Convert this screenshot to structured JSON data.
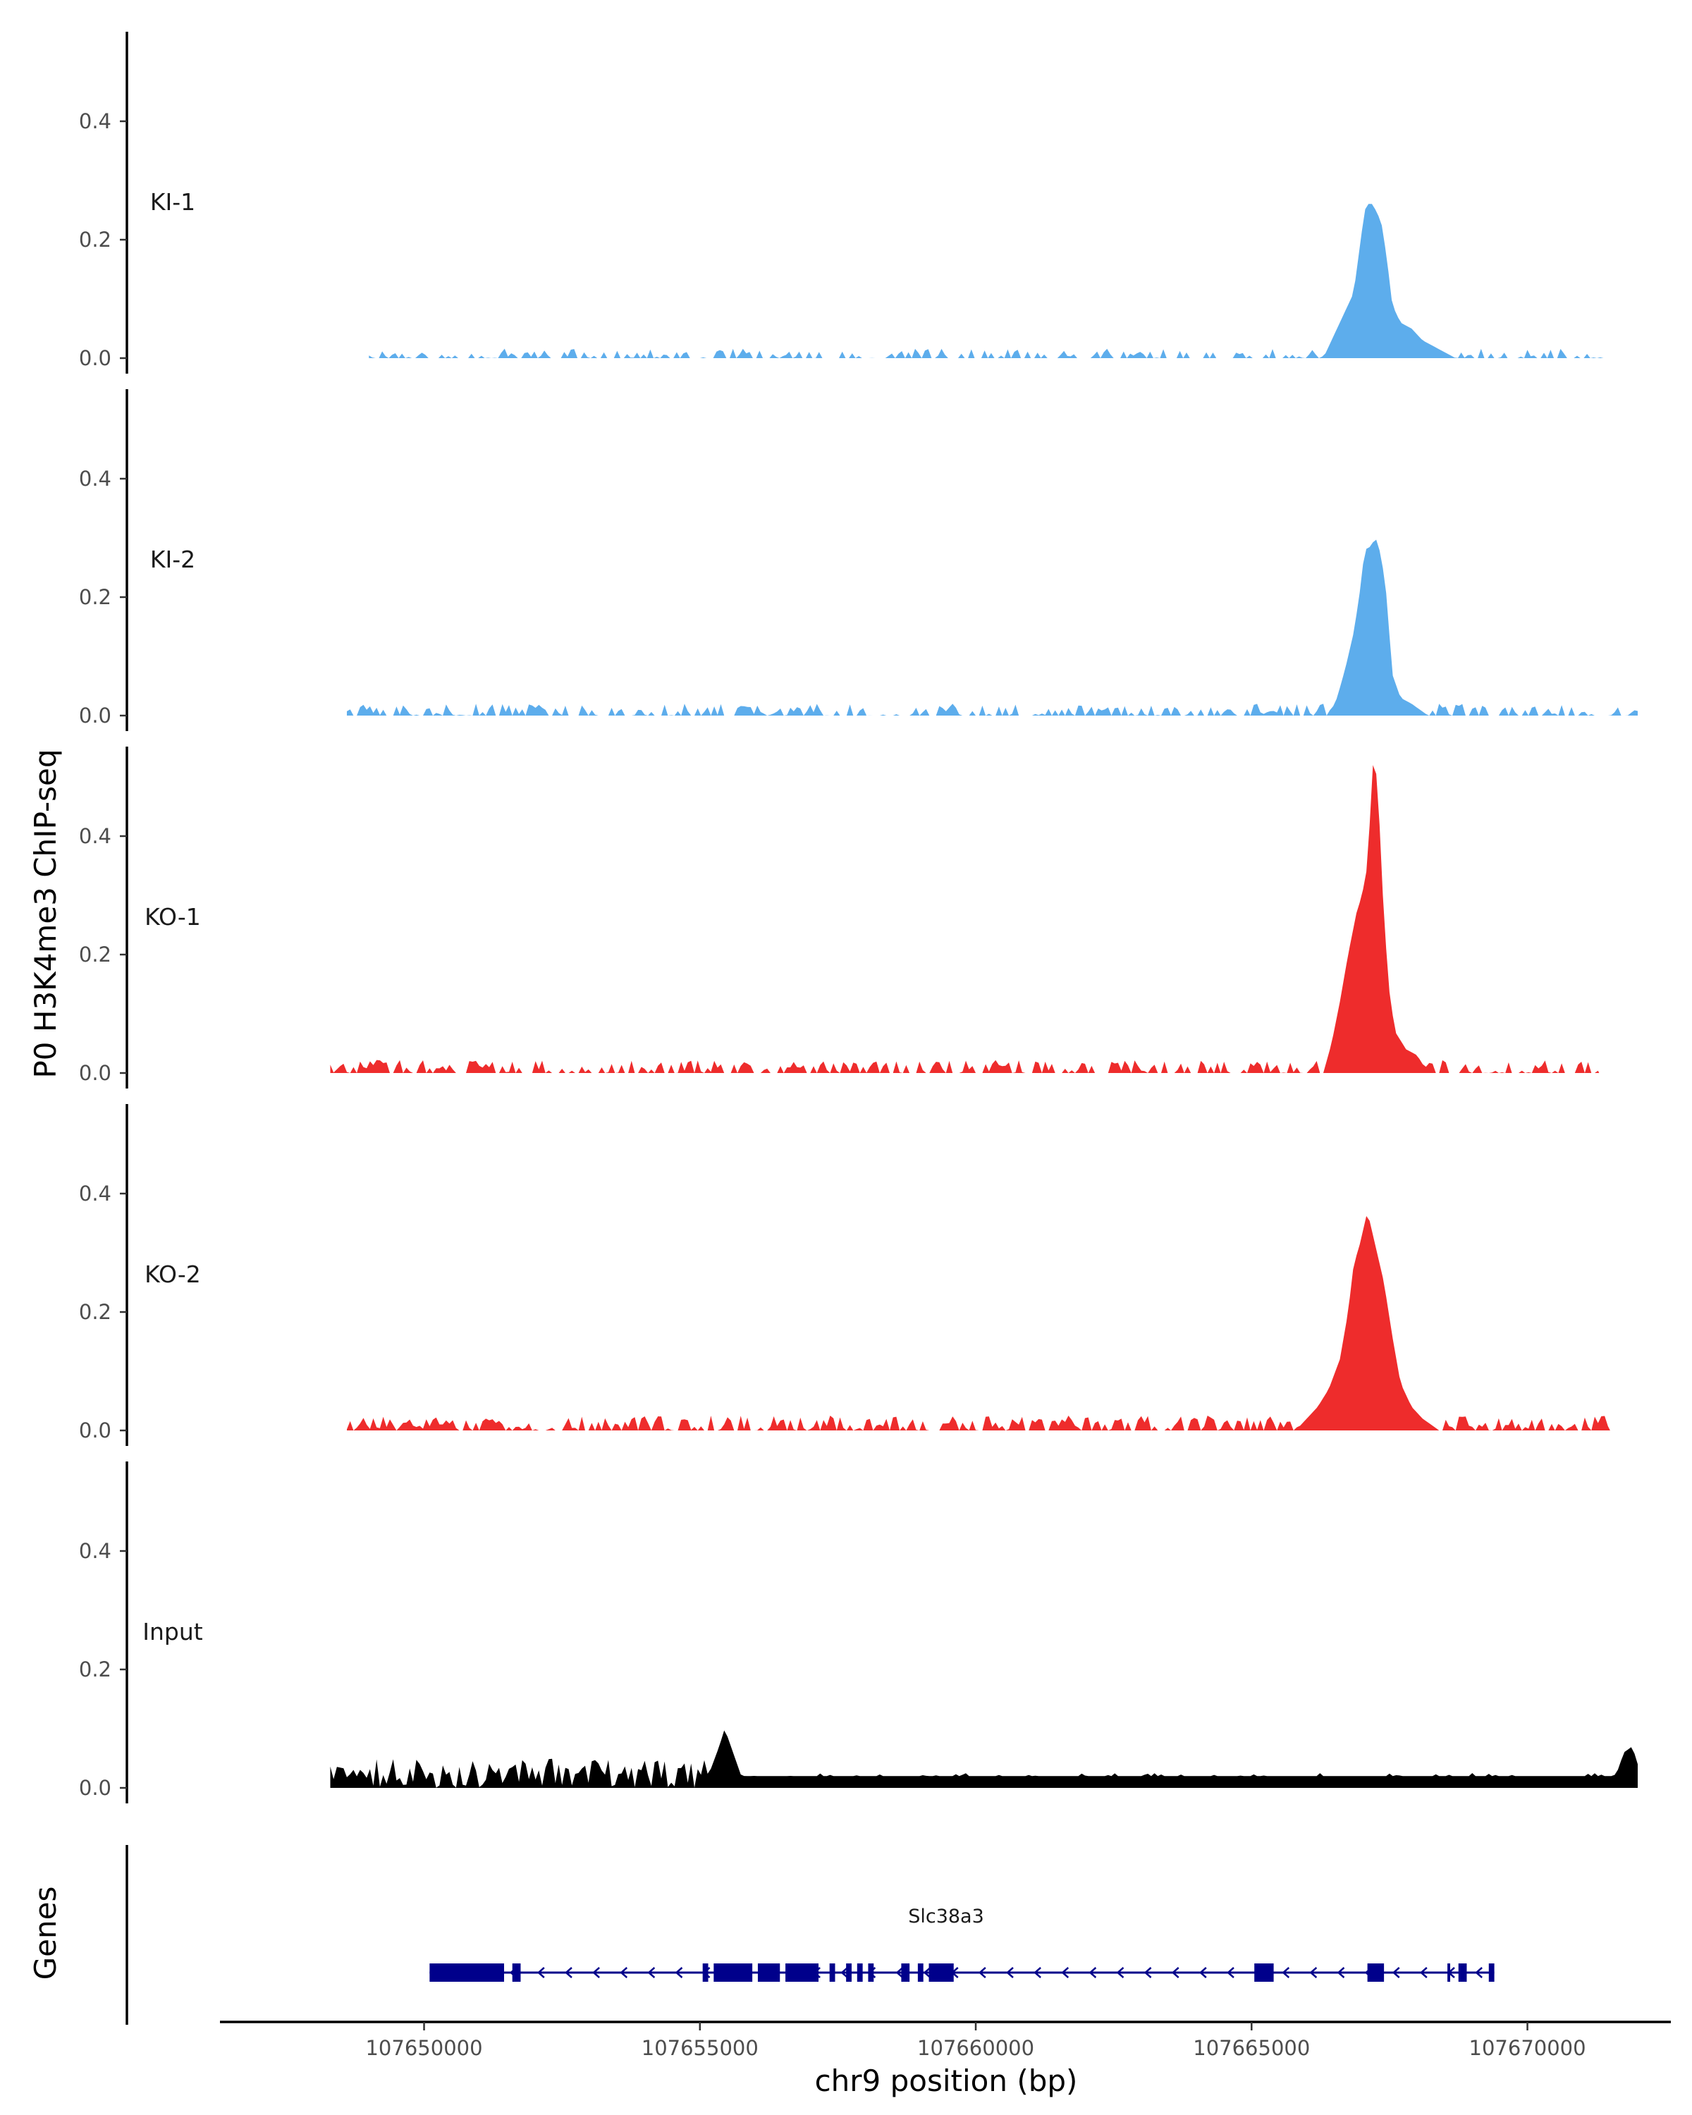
{
  "chart_data": {
    "type": "area",
    "title": "",
    "ylabel": "P0 H3K4me3 ChIP-seq",
    "genes_label": "Genes",
    "xlabel": "chr9 position (bp)",
    "x_range": [
      107646300,
      107672600
    ],
    "x_ticks": [
      107650000,
      107655000,
      107660000,
      107665000,
      107670000
    ],
    "x_tick_labels": [
      "107650000",
      "107655000",
      "107660000",
      "107665000",
      "107670000"
    ],
    "y_range": [
      0,
      0.55
    ],
    "y_ticks": [
      0.0,
      0.2,
      0.4
    ],
    "y_tick_labels": [
      "0.0",
      "0.2",
      "0.4"
    ],
    "colors": {
      "KI": "#5DADEC",
      "KO": "#EE2C2C",
      "Input": "#000000",
      "gene": "#00008B"
    },
    "tracks": [
      {
        "name": "KI-1",
        "color": "#5DADEC",
        "seed": 11,
        "start": 107649000,
        "end": 107671500,
        "noise_max": 0.016,
        "noise_density": 0.5,
        "peak": [
          [
            107666300,
            0.0
          ],
          [
            107666500,
            0.04
          ],
          [
            107666700,
            0.08
          ],
          [
            107666850,
            0.11
          ],
          [
            107666950,
            0.18
          ],
          [
            107667050,
            0.25
          ],
          [
            107667150,
            0.265
          ],
          [
            107667250,
            0.25
          ],
          [
            107667350,
            0.23
          ],
          [
            107667450,
            0.17
          ],
          [
            107667550,
            0.09
          ],
          [
            107667700,
            0.06
          ],
          [
            107667900,
            0.05
          ],
          [
            107668100,
            0.03
          ],
          [
            107668400,
            0.015
          ],
          [
            107668700,
            0.0
          ]
        ]
      },
      {
        "name": "KI-2",
        "color": "#5DADEC",
        "seed": 23,
        "start": 107648600,
        "end": 107672000,
        "noise_max": 0.02,
        "noise_density": 0.6,
        "peak": [
          [
            107666400,
            0.0
          ],
          [
            107666550,
            0.03
          ],
          [
            107666700,
            0.08
          ],
          [
            107666850,
            0.14
          ],
          [
            107666950,
            0.2
          ],
          [
            107667050,
            0.28
          ],
          [
            107667150,
            0.285
          ],
          [
            107667250,
            0.3
          ],
          [
            107667350,
            0.27
          ],
          [
            107667450,
            0.2
          ],
          [
            107667550,
            0.07
          ],
          [
            107667700,
            0.03
          ],
          [
            107667900,
            0.02
          ],
          [
            107668200,
            0.0
          ]
        ]
      },
      {
        "name": "KO-1",
        "color": "#EE2C2C",
        "seed": 37,
        "start": 107648300,
        "end": 107671300,
        "noise_max": 0.022,
        "noise_density": 0.6,
        "peak": [
          [
            107666300,
            0.0
          ],
          [
            107666450,
            0.05
          ],
          [
            107666600,
            0.12
          ],
          [
            107666750,
            0.2
          ],
          [
            107666900,
            0.27
          ],
          [
            107667000,
            0.3
          ],
          [
            107667100,
            0.35
          ],
          [
            107667200,
            0.52
          ],
          [
            107667280,
            0.5
          ],
          [
            107667380,
            0.3
          ],
          [
            107667480,
            0.15
          ],
          [
            107667600,
            0.07
          ],
          [
            107667800,
            0.04
          ],
          [
            107668000,
            0.03
          ],
          [
            107668200,
            0.0
          ]
        ]
      },
      {
        "name": "KO-2",
        "color": "#EE2C2C",
        "seed": 53,
        "start": 107648600,
        "end": 107671500,
        "noise_max": 0.025,
        "noise_density": 0.7,
        "peak": [
          [
            107665800,
            0.0
          ],
          [
            107666000,
            0.02
          ],
          [
            107666200,
            0.04
          ],
          [
            107666400,
            0.07
          ],
          [
            107666600,
            0.12
          ],
          [
            107666750,
            0.2
          ],
          [
            107666850,
            0.28
          ],
          [
            107666950,
            0.31
          ],
          [
            107667100,
            0.37
          ],
          [
            107667250,
            0.31
          ],
          [
            107667400,
            0.25
          ],
          [
            107667550,
            0.16
          ],
          [
            107667700,
            0.08
          ],
          [
            107667900,
            0.04
          ],
          [
            107668100,
            0.02
          ],
          [
            107668400,
            0.0
          ]
        ]
      },
      {
        "name": "Input",
        "color": "#000000",
        "seed": 71,
        "start": 107648300,
        "end": 107672000,
        "noise_max": 0.05,
        "noise_density": 1.0,
        "peak": [
          [
            107655150,
            0.02
          ],
          [
            107655350,
            0.07
          ],
          [
            107655450,
            0.1
          ],
          [
            107655600,
            0.06
          ],
          [
            107655750,
            0.02
          ],
          [
            107671600,
            0.02
          ],
          [
            107671750,
            0.06
          ],
          [
            107671900,
            0.07
          ],
          [
            107672000,
            0.04
          ]
        ]
      }
    ],
    "gene": {
      "name": "Slc38a3",
      "strand": "-",
      "start": 107650100,
      "end": 107669400,
      "exons": [
        [
          107650100,
          107651450
        ],
        [
          107651600,
          107651750
        ],
        [
          107655050,
          107655150
        ],
        [
          107655250,
          107655950
        ],
        [
          107656050,
          107656450
        ],
        [
          107656550,
          107657150
        ],
        [
          107657350,
          107657450
        ],
        [
          107657650,
          107657750
        ],
        [
          107657850,
          107657950
        ],
        [
          107658050,
          107658150
        ],
        [
          107658650,
          107658800
        ],
        [
          107658950,
          107659050
        ],
        [
          107659150,
          107659600
        ],
        [
          107665050,
          107665400
        ],
        [
          107667100,
          107667400
        ],
        [
          107668550,
          107668600
        ],
        [
          107668750,
          107668900
        ],
        [
          107669300,
          107669400
        ]
      ]
    }
  }
}
